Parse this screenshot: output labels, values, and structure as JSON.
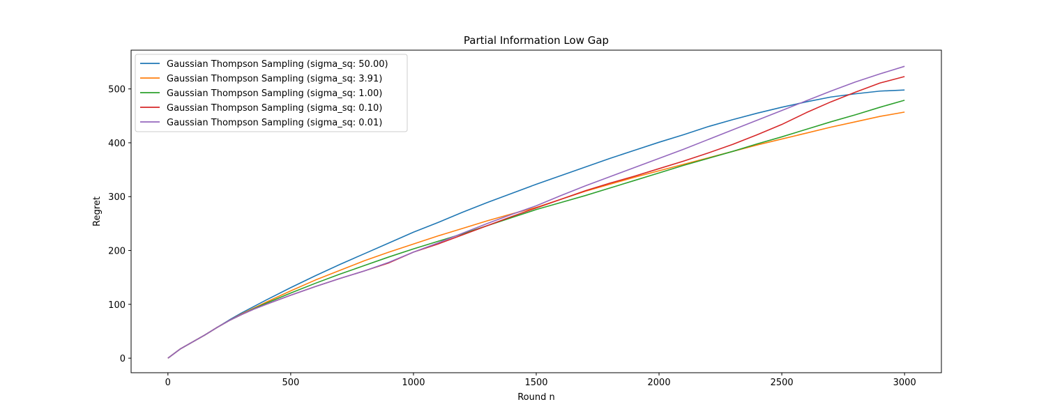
{
  "chart_data": {
    "type": "line",
    "title": "Partial Information Low Gap",
    "xlabel": "Round n",
    "ylabel": "Regret",
    "xlim": [
      -150,
      3150
    ],
    "ylim": [
      -27,
      572
    ],
    "xticks": [
      0,
      500,
      1000,
      1500,
      2000,
      2500,
      3000
    ],
    "yticks": [
      0,
      100,
      200,
      300,
      400,
      500
    ],
    "grid": false,
    "legend_position": "top-left",
    "series": [
      {
        "name": "Gaussian Thompson Sampling (sigma_sq: 50.00)",
        "color": "#1f77b4",
        "x": [
          0,
          50,
          100,
          150,
          200,
          250,
          300,
          350,
          400,
          500,
          600,
          700,
          800,
          900,
          1000,
          1100,
          1200,
          1300,
          1400,
          1500,
          1600,
          1700,
          1800,
          1900,
          2000,
          2100,
          2200,
          2300,
          2400,
          2500,
          2600,
          2700,
          2800,
          2900,
          3000
        ],
        "values": [
          0,
          17,
          30,
          43,
          57,
          71,
          84,
          96,
          108,
          131,
          153,
          174,
          194,
          214,
          234,
          252,
          271,
          289,
          306,
          323,
          339,
          355,
          371,
          386,
          401,
          415,
          430,
          443,
          455,
          466,
          476,
          485,
          491,
          496,
          498
        ]
      },
      {
        "name": "Gaussian Thompson Sampling (sigma_sq: 3.91)",
        "color": "#ff7f0e",
        "x": [
          0,
          50,
          100,
          150,
          200,
          250,
          300,
          350,
          400,
          500,
          600,
          700,
          800,
          900,
          1000,
          1100,
          1200,
          1300,
          1400,
          1500,
          1600,
          1700,
          1800,
          1900,
          2000,
          2100,
          2200,
          2300,
          2400,
          2500,
          2600,
          2700,
          2800,
          2900,
          3000
        ],
        "values": [
          0,
          17,
          30,
          43,
          57,
          70,
          82,
          93,
          104,
          125,
          145,
          163,
          181,
          197,
          212,
          227,
          241,
          255,
          268,
          280,
          295,
          310,
          323,
          336,
          348,
          360,
          372,
          384,
          396,
          407,
          418,
          429,
          439,
          449,
          457
        ]
      },
      {
        "name": "Gaussian Thompson Sampling (sigma_sq: 1.00)",
        "color": "#2ca02c",
        "x": [
          0,
          50,
          100,
          150,
          200,
          250,
          300,
          350,
          400,
          500,
          600,
          700,
          800,
          900,
          1000,
          1100,
          1200,
          1300,
          1400,
          1500,
          1600,
          1700,
          1800,
          1900,
          2000,
          2100,
          2200,
          2300,
          2400,
          2500,
          2600,
          2700,
          2800,
          2900,
          3000
        ],
        "values": [
          0,
          17,
          30,
          43,
          57,
          70,
          81,
          92,
          102,
          121,
          139,
          156,
          172,
          188,
          203,
          217,
          231,
          246,
          261,
          276,
          289,
          302,
          316,
          330,
          344,
          358,
          371,
          384,
          398,
          411,
          425,
          439,
          452,
          466,
          479
        ]
      },
      {
        "name": "Gaussian Thompson Sampling (sigma_sq: 0.10)",
        "color": "#d62728",
        "x": [
          0,
          50,
          100,
          150,
          200,
          250,
          300,
          350,
          400,
          500,
          600,
          700,
          800,
          900,
          1000,
          1100,
          1200,
          1300,
          1400,
          1500,
          1600,
          1700,
          1800,
          1900,
          2000,
          2100,
          2200,
          2300,
          2400,
          2500,
          2600,
          2700,
          2800,
          2900,
          3000
        ],
        "values": [
          0,
          17,
          30,
          43,
          57,
          70,
          81,
          91,
          100,
          117,
          133,
          148,
          162,
          177,
          197,
          212,
          229,
          246,
          263,
          279,
          295,
          311,
          325,
          338,
          352,
          366,
          381,
          397,
          415,
          434,
          456,
          476,
          494,
          511,
          523
        ]
      },
      {
        "name": "Gaussian Thompson Sampling (sigma_sq: 0.01)",
        "color": "#9467bd",
        "x": [
          0,
          50,
          100,
          150,
          200,
          250,
          300,
          350,
          400,
          500,
          600,
          700,
          800,
          900,
          1000,
          1100,
          1200,
          1300,
          1400,
          1500,
          1600,
          1700,
          1800,
          1900,
          2000,
          2100,
          2200,
          2300,
          2400,
          2500,
          2600,
          2700,
          2800,
          2900,
          3000
        ],
        "values": [
          0,
          17,
          30,
          43,
          57,
          70,
          81,
          91,
          100,
          117,
          133,
          148,
          162,
          178,
          197,
          214,
          232,
          250,
          267,
          283,
          302,
          320,
          337,
          354,
          371,
          388,
          406,
          424,
          442,
          460,
          478,
          496,
          513,
          528,
          542
        ]
      }
    ]
  }
}
